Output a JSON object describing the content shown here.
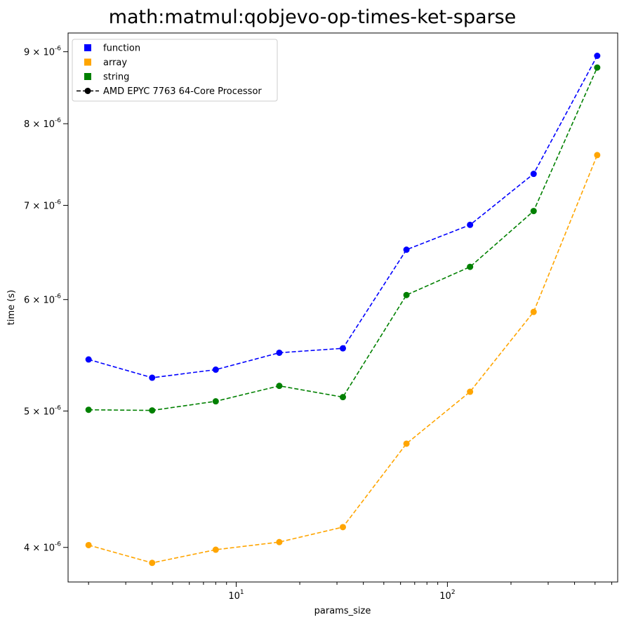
{
  "chart_data": {
    "type": "line",
    "title": "math:matmul:qobjevo-op-times-ket-sparse",
    "xlabel": "params_size",
    "ylabel": "time (s)",
    "x": [
      2,
      4,
      8,
      16,
      32,
      64,
      128,
      256,
      512
    ],
    "xscale": "log",
    "yscale": "log",
    "xlim": [
      1.6,
      640
    ],
    "ylim": [
      3.78e-06,
      9.28e-06
    ],
    "xticks": [
      {
        "value": 10,
        "label": "10^1"
      },
      {
        "value": 100,
        "label": "10^2"
      }
    ],
    "yticks": [
      {
        "value": 4e-06,
        "label": "4 × 10^-6"
      },
      {
        "value": 5e-06,
        "label": "5 × 10^-6"
      },
      {
        "value": 6e-06,
        "label": "6 × 10^-6"
      },
      {
        "value": 7e-06,
        "label": "7 × 10^-6"
      },
      {
        "value": 8e-06,
        "label": "8 × 10^-6"
      },
      {
        "value": 9e-06,
        "label": "9 × 10^-6"
      }
    ],
    "series": [
      {
        "name": "function",
        "color": "#0000ff",
        "values": [
          5.44e-06,
          5.28e-06,
          5.35e-06,
          5.5e-06,
          5.54e-06,
          6.51e-06,
          6.78e-06,
          7.37e-06,
          8.94e-06
        ]
      },
      {
        "name": "array",
        "color": "#ffa500",
        "values": [
          4.015e-06,
          3.9e-06,
          3.985e-06,
          4.035e-06,
          4.135e-06,
          4.74e-06,
          5.16e-06,
          5.88e-06,
          7.6e-06
        ]
      },
      {
        "name": "string",
        "color": "#008000",
        "values": [
          5.01e-06,
          5.005e-06,
          5.08e-06,
          5.21e-06,
          5.115e-06,
          6.045e-06,
          6.33e-06,
          6.935e-06,
          8.77e-06
        ]
      }
    ],
    "legend": {
      "placement": "top-left",
      "entries": [
        {
          "label": "function",
          "color": "#0000ff",
          "marker": "square"
        },
        {
          "label": "array",
          "color": "#ffa500",
          "marker": "square"
        },
        {
          "label": "string",
          "color": "#008000",
          "marker": "square"
        },
        {
          "label": "AMD EPYC 7763 64-Core Processor",
          "color": "#000000",
          "marker": "circle-dashed-line"
        }
      ]
    },
    "grid": false
  }
}
